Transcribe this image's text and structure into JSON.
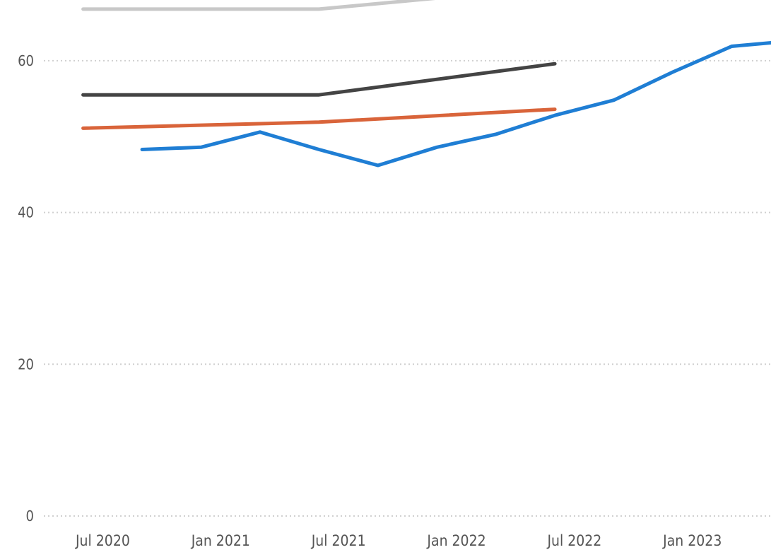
{
  "chart_data": {
    "type": "line",
    "title": "",
    "xlabel": "",
    "ylabel": "",
    "ylim": [
      0,
      68
    ],
    "xlim": [
      "2020-04",
      "2023-05"
    ],
    "grid": true,
    "grid_style": "dotted horizontal",
    "legend": "none",
    "y_ticks": [
      {
        "value": 0,
        "label": "0"
      },
      {
        "value": 20,
        "label": "20"
      },
      {
        "value": 40,
        "label": "40"
      },
      {
        "value": 60,
        "label": "60"
      }
    ],
    "x_ticks": [
      {
        "value": "2020-07",
        "label": "Jul 2020"
      },
      {
        "value": "2021-01",
        "label": "Jan 2021"
      },
      {
        "value": "2021-07",
        "label": "Jul 2021"
      },
      {
        "value": "2022-01",
        "label": "Jan 2022"
      },
      {
        "value": "2022-07",
        "label": "Jul 2022"
      },
      {
        "value": "2023-01",
        "label": "Jan 2023"
      }
    ],
    "series": [
      {
        "color": "#c8c8c8",
        "points": [
          [
            "2020-06",
            66.8
          ],
          [
            "2021-06",
            66.8
          ],
          [
            "2022-06",
            69.7
          ]
        ]
      },
      {
        "color": "#444444",
        "points": [
          [
            "2020-06",
            55.5
          ],
          [
            "2021-06",
            55.5
          ],
          [
            "2022-06",
            59.6
          ]
        ]
      },
      {
        "color": "#d9643a",
        "points": [
          [
            "2020-06",
            51.1
          ],
          [
            "2021-06",
            51.9
          ],
          [
            "2022-06",
            53.6
          ]
        ]
      },
      {
        "color": "#1f7ed4",
        "points": [
          [
            "2020-09",
            48.3
          ],
          [
            "2020-12",
            48.6
          ],
          [
            "2021-03",
            50.6
          ],
          [
            "2021-06",
            48.3
          ],
          [
            "2021-09",
            46.2
          ],
          [
            "2021-12",
            48.6
          ],
          [
            "2022-03",
            50.3
          ],
          [
            "2022-06",
            52.8
          ],
          [
            "2022-09",
            54.8
          ],
          [
            "2022-12",
            58.5
          ],
          [
            "2023-03",
            61.9
          ],
          [
            "2023-06",
            62.6
          ]
        ]
      }
    ]
  }
}
